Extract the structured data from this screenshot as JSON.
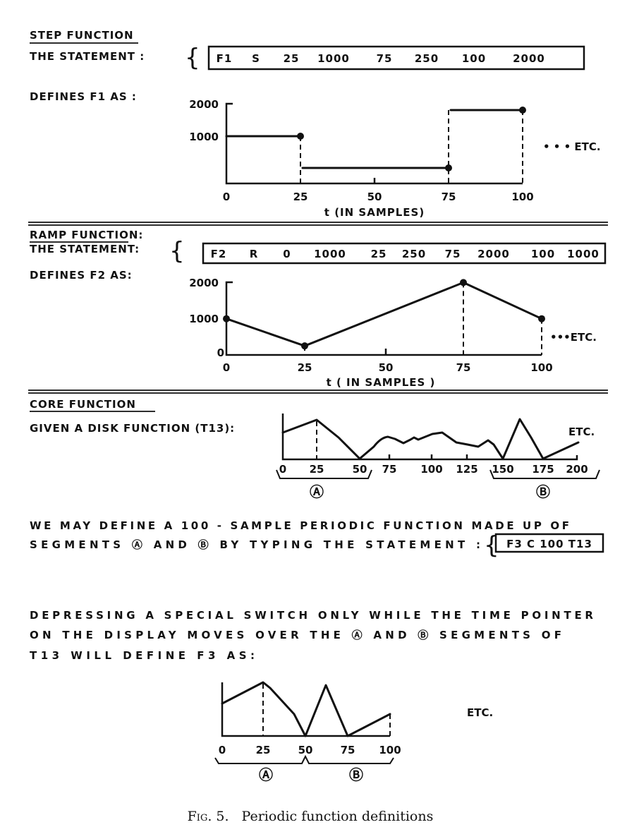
{
  "step": {
    "heading": "STEP FUNCTION",
    "statement_label": "THE STATEMENT :",
    "statement_tokens": [
      "F1",
      "S",
      "25",
      "1000",
      "75",
      "250",
      "100",
      "2000"
    ],
    "defines_label": "DEFINES F1 AS :",
    "y_ticks": [
      "2000",
      "1000"
    ],
    "x_ticks": [
      "0",
      "25",
      "50",
      "75",
      "100"
    ],
    "x_label": "t (IN SAMPLES)",
    "etc": "• • • ETC.",
    "segments": [
      {
        "t_end": 25,
        "value": 1000
      },
      {
        "t_end": 75,
        "value": 250
      },
      {
        "t_end": 100,
        "value": 2000
      }
    ]
  },
  "ramp": {
    "heading": "RAMP FUNCTION:",
    "statement_label": "THE STATEMENT:",
    "statement_tokens": [
      "F2",
      "R",
      "0",
      "1000",
      "25",
      "250",
      "75",
      "2000",
      "100",
      "1000"
    ],
    "defines_label": "DEFINES F2 AS:",
    "y_ticks": [
      "2000",
      "1000",
      "0"
    ],
    "x_ticks": [
      "0",
      "25",
      "50",
      "75",
      "100"
    ],
    "x_label": "t ( IN SAMPLES )",
    "etc": "•••ETC.",
    "points": [
      {
        "t": 0,
        "value": 1000
      },
      {
        "t": 25,
        "value": 250
      },
      {
        "t": 75,
        "value": 2000
      },
      {
        "t": 100,
        "value": 1000
      }
    ]
  },
  "core": {
    "heading": "CORE FUNCTION",
    "given_label": "GIVEN A DISK FUNCTION (T13):",
    "x_ticks": [
      "0",
      "25",
      "50",
      "75",
      "100",
      "125",
      "150",
      "175",
      "200"
    ],
    "etc": "ETC.",
    "segment_a": "Ⓐ",
    "segment_b": "Ⓑ",
    "para1_line1": "WE MAY DEFINE A 100 - SAMPLE PERIODIC FUNCTION MADE UP OF",
    "para1_line2": "SEGMENTS Ⓐ AND Ⓑ BY TYPING THE STATEMENT :",
    "statement": "F3 C 100 T13",
    "para2_line1": "DEPRESSING A SPECIAL SWITCH ONLY WHILE THE TIME POINTER",
    "para2_line2": "ON THE DISPLAY MOVES OVER THE Ⓐ AND Ⓑ SEGMENTS OF",
    "para2_line3": "T13 WILL DEFINE F3 AS:",
    "result_x_ticks": [
      "0",
      "25",
      "50",
      "75",
      "100"
    ],
    "result_etc": "ETC."
  },
  "caption": {
    "fig": "Fig. 5.",
    "text": "Periodic function definitions"
  }
}
